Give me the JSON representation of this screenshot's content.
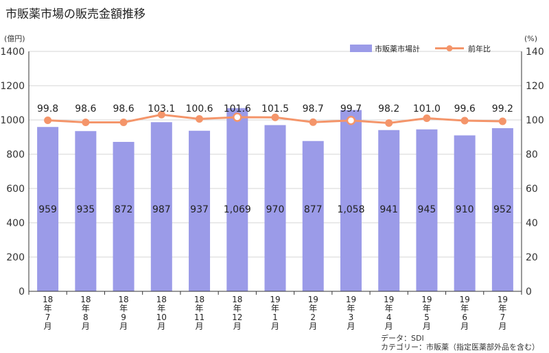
{
  "title": "市販薬市場の販売金額推移",
  "footnote": {
    "line1": "データ：SDI",
    "line2": "カテゴリー：市販薬（指定医薬部外品を含む）"
  },
  "colors": {
    "bar": "#9b9be8",
    "line": "#f4956a",
    "grid": "#d6d6d6",
    "axis": "#333333"
  },
  "chart_data": {
    "type": "bar",
    "categories": [
      "18年7月",
      "18年8月",
      "18年9月",
      "18年10月",
      "18年11月",
      "18年12月",
      "19年1月",
      "19年2月",
      "19年3月",
      "19年4月",
      "19年5月",
      "19年6月",
      "19年7月"
    ],
    "category_lines": [
      [
        "18",
        "年",
        "7",
        "月"
      ],
      [
        "18",
        "年",
        "8",
        "月"
      ],
      [
        "18",
        "年",
        "9",
        "月"
      ],
      [
        "18",
        "年",
        "10",
        "月"
      ],
      [
        "18",
        "年",
        "11",
        "月"
      ],
      [
        "18",
        "年",
        "12",
        "月"
      ],
      [
        "19",
        "年",
        "1",
        "月"
      ],
      [
        "19",
        "年",
        "2",
        "月"
      ],
      [
        "19",
        "年",
        "3",
        "月"
      ],
      [
        "19",
        "年",
        "4",
        "月"
      ],
      [
        "19",
        "年",
        "5",
        "月"
      ],
      [
        "19",
        "年",
        "6",
        "月"
      ],
      [
        "19",
        "年",
        "7",
        "月"
      ]
    ],
    "series": [
      {
        "name": "市販薬市場計",
        "type": "bar",
        "axis": "left",
        "values": [
          959,
          935,
          872,
          987,
          937,
          1069,
          970,
          877,
          1058,
          941,
          945,
          910,
          952
        ],
        "labels": [
          "959",
          "935",
          "872",
          "987",
          "937",
          "1,069",
          "970",
          "877",
          "1,058",
          "941",
          "945",
          "910",
          "952"
        ]
      },
      {
        "name": "前年比",
        "type": "line",
        "axis": "right",
        "values": [
          99.8,
          98.6,
          98.6,
          103.1,
          100.6,
          101.6,
          101.5,
          98.7,
          99.7,
          98.2,
          101.0,
          99.6,
          99.2
        ],
        "labels": [
          "99.8",
          "98.6",
          "98.6",
          "103.1",
          "100.6",
          "101.6",
          "101.5",
          "98.7",
          "99.7",
          "98.2",
          "101.0",
          "99.6",
          "99.2"
        ]
      }
    ],
    "y_left": {
      "unit": "(億円)",
      "range": [
        0,
        1400
      ],
      "ticks": [
        0,
        200,
        400,
        600,
        800,
        1000,
        1200,
        1400
      ]
    },
    "y_right": {
      "unit": "(%)",
      "range": [
        0,
        140
      ],
      "ticks": [
        0,
        20,
        40,
        60,
        80,
        100,
        120,
        140
      ]
    },
    "grid": true,
    "legend_position": "top-right"
  }
}
